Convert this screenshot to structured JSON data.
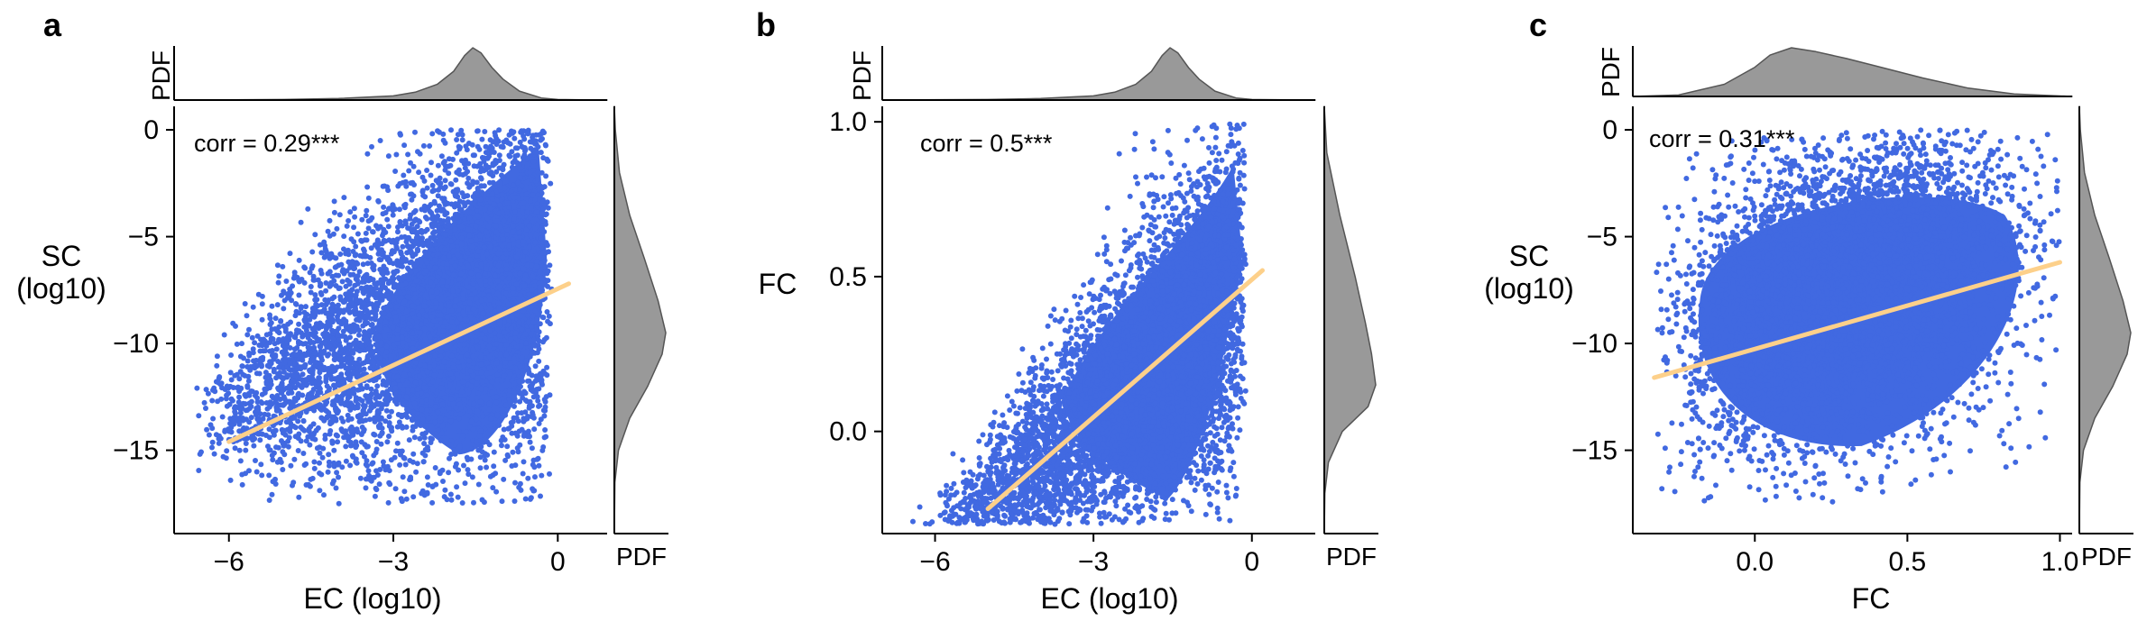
{
  "colors": {
    "scatter": "#4169e1",
    "fit_line": "#fdd08a",
    "marginal_fill": "#999999",
    "marginal_stroke": "#555555",
    "axis": "#000000"
  },
  "chart_data": [
    {
      "panel": "a",
      "type": "scatter",
      "xlabel": "EC (log10)",
      "ylabel": "SC\n(log10)",
      "xlim": [
        -7.0,
        0.9
      ],
      "ylim": [
        -18.9,
        1.1
      ],
      "xticks": [
        -6,
        -3,
        0
      ],
      "xtick_labels": [
        "−6",
        "−3",
        "0"
      ],
      "yticks": [
        0,
        -5,
        -10,
        -15
      ],
      "ytick_labels": [
        "0",
        "−5",
        "−10",
        "−15"
      ],
      "corr_text": "corr = 0.29***",
      "fit_line": {
        "x": [
          -6.0,
          0.2
        ],
        "y": [
          -14.6,
          -7.2
        ]
      },
      "scatter_spec": {
        "xmin": -6.6,
        "xmax": -0.1,
        "xcenter": -1.4,
        "ymin": -17.5,
        "ymax": 0.0
      },
      "marginal_x": {
        "label": "PDF",
        "x": [
          -7.0,
          -5.0,
          -4.0,
          -3.0,
          -2.6,
          -2.2,
          -1.9,
          -1.7,
          -1.55,
          -1.4,
          -1.2,
          -1.0,
          -0.7,
          -0.3,
          0.0,
          0.9
        ],
        "density": [
          0,
          0.01,
          0.03,
          0.08,
          0.15,
          0.3,
          0.55,
          0.85,
          1.0,
          0.9,
          0.62,
          0.4,
          0.17,
          0.04,
          0.01,
          0
        ]
      },
      "marginal_y": {
        "label": "PDF",
        "y": [
          1.1,
          0.0,
          -2.0,
          -4.0,
          -6.0,
          -8.0,
          -9.5,
          -10.5,
          -12.0,
          -13.5,
          -15.0,
          -16.5,
          -18.9
        ],
        "density": [
          0,
          0.02,
          0.1,
          0.3,
          0.58,
          0.85,
          1.0,
          0.93,
          0.65,
          0.3,
          0.08,
          0.01,
          0
        ]
      }
    },
    {
      "panel": "b",
      "type": "scatter",
      "xlabel": "EC (log10)",
      "ylabel": "FC",
      "xlim": [
        -7.0,
        1.2
      ],
      "ylim": [
        -0.33,
        1.05
      ],
      "xticks": [
        -6,
        -3,
        0
      ],
      "xtick_labels": [
        "−6",
        "−3",
        "0"
      ],
      "yticks": [
        1.0,
        0.5,
        0.0
      ],
      "ytick_labels": [
        "1.0",
        "0.5",
        "0.0"
      ],
      "corr_text": "corr = 0.5***",
      "fit_line": {
        "x": [
          -5.0,
          0.2
        ],
        "y": [
          -0.25,
          0.52
        ]
      },
      "scatter_spec": {
        "xmin": -6.6,
        "xmax": -0.1,
        "xcenter": -1.4,
        "ymin": -0.3,
        "ymax": 1.0
      },
      "marginal_x": {
        "label": "PDF",
        "x": [
          -7.0,
          -5.0,
          -4.0,
          -3.0,
          -2.6,
          -2.2,
          -1.9,
          -1.7,
          -1.55,
          -1.4,
          -1.2,
          -1.0,
          -0.7,
          -0.3,
          0.0,
          1.2
        ],
        "density": [
          0,
          0.01,
          0.03,
          0.08,
          0.15,
          0.3,
          0.55,
          0.85,
          1.0,
          0.9,
          0.62,
          0.4,
          0.17,
          0.04,
          0.01,
          0
        ]
      },
      "marginal_y": {
        "label": "PDF",
        "y": [
          1.05,
          0.9,
          0.7,
          0.5,
          0.35,
          0.25,
          0.15,
          0.08,
          0.0,
          -0.1,
          -0.2,
          -0.33
        ],
        "density": [
          0,
          0.05,
          0.3,
          0.6,
          0.8,
          0.92,
          1.0,
          0.85,
          0.35,
          0.08,
          0.01,
          0
        ]
      }
    },
    {
      "panel": "c",
      "type": "scatter",
      "xlabel": "FC",
      "ylabel": "SC\n(log10)",
      "xlim": [
        -0.4,
        1.04
      ],
      "ylim": [
        -18.9,
        1.1
      ],
      "xticks": [
        0.0,
        0.5,
        1.0
      ],
      "xtick_labels": [
        "0.0",
        "0.5",
        "1.0"
      ],
      "yticks": [
        0,
        -5,
        -10,
        -15
      ],
      "ytick_labels": [
        "0",
        "−5",
        "−10",
        "−15"
      ],
      "corr_text": "corr = 0.31***",
      "fit_line": {
        "x": [
          -0.33,
          1.0
        ],
        "y": [
          -11.6,
          -6.2
        ]
      },
      "scatter_spec": {
        "xmin": -0.33,
        "xmax": 1.0,
        "xcenter": 0.3,
        "ymin": -17.5,
        "ymax": 0.0
      },
      "marginal_x": {
        "label": "PDF",
        "x": [
          -0.4,
          -0.25,
          -0.1,
          0.0,
          0.05,
          0.12,
          0.2,
          0.3,
          0.4,
          0.55,
          0.7,
          0.85,
          1.04
        ],
        "density": [
          0,
          0.03,
          0.25,
          0.6,
          0.85,
          1.0,
          0.92,
          0.78,
          0.62,
          0.38,
          0.17,
          0.05,
          0
        ]
      },
      "marginal_y": {
        "label": "PDF",
        "y": [
          1.1,
          0.0,
          -2.0,
          -4.0,
          -6.0,
          -8.0,
          -9.5,
          -10.5,
          -12.0,
          -13.5,
          -15.0,
          -16.5,
          -18.9
        ],
        "density": [
          0,
          0.02,
          0.1,
          0.3,
          0.58,
          0.85,
          1.0,
          0.93,
          0.65,
          0.3,
          0.08,
          0.01,
          0
        ]
      }
    }
  ]
}
